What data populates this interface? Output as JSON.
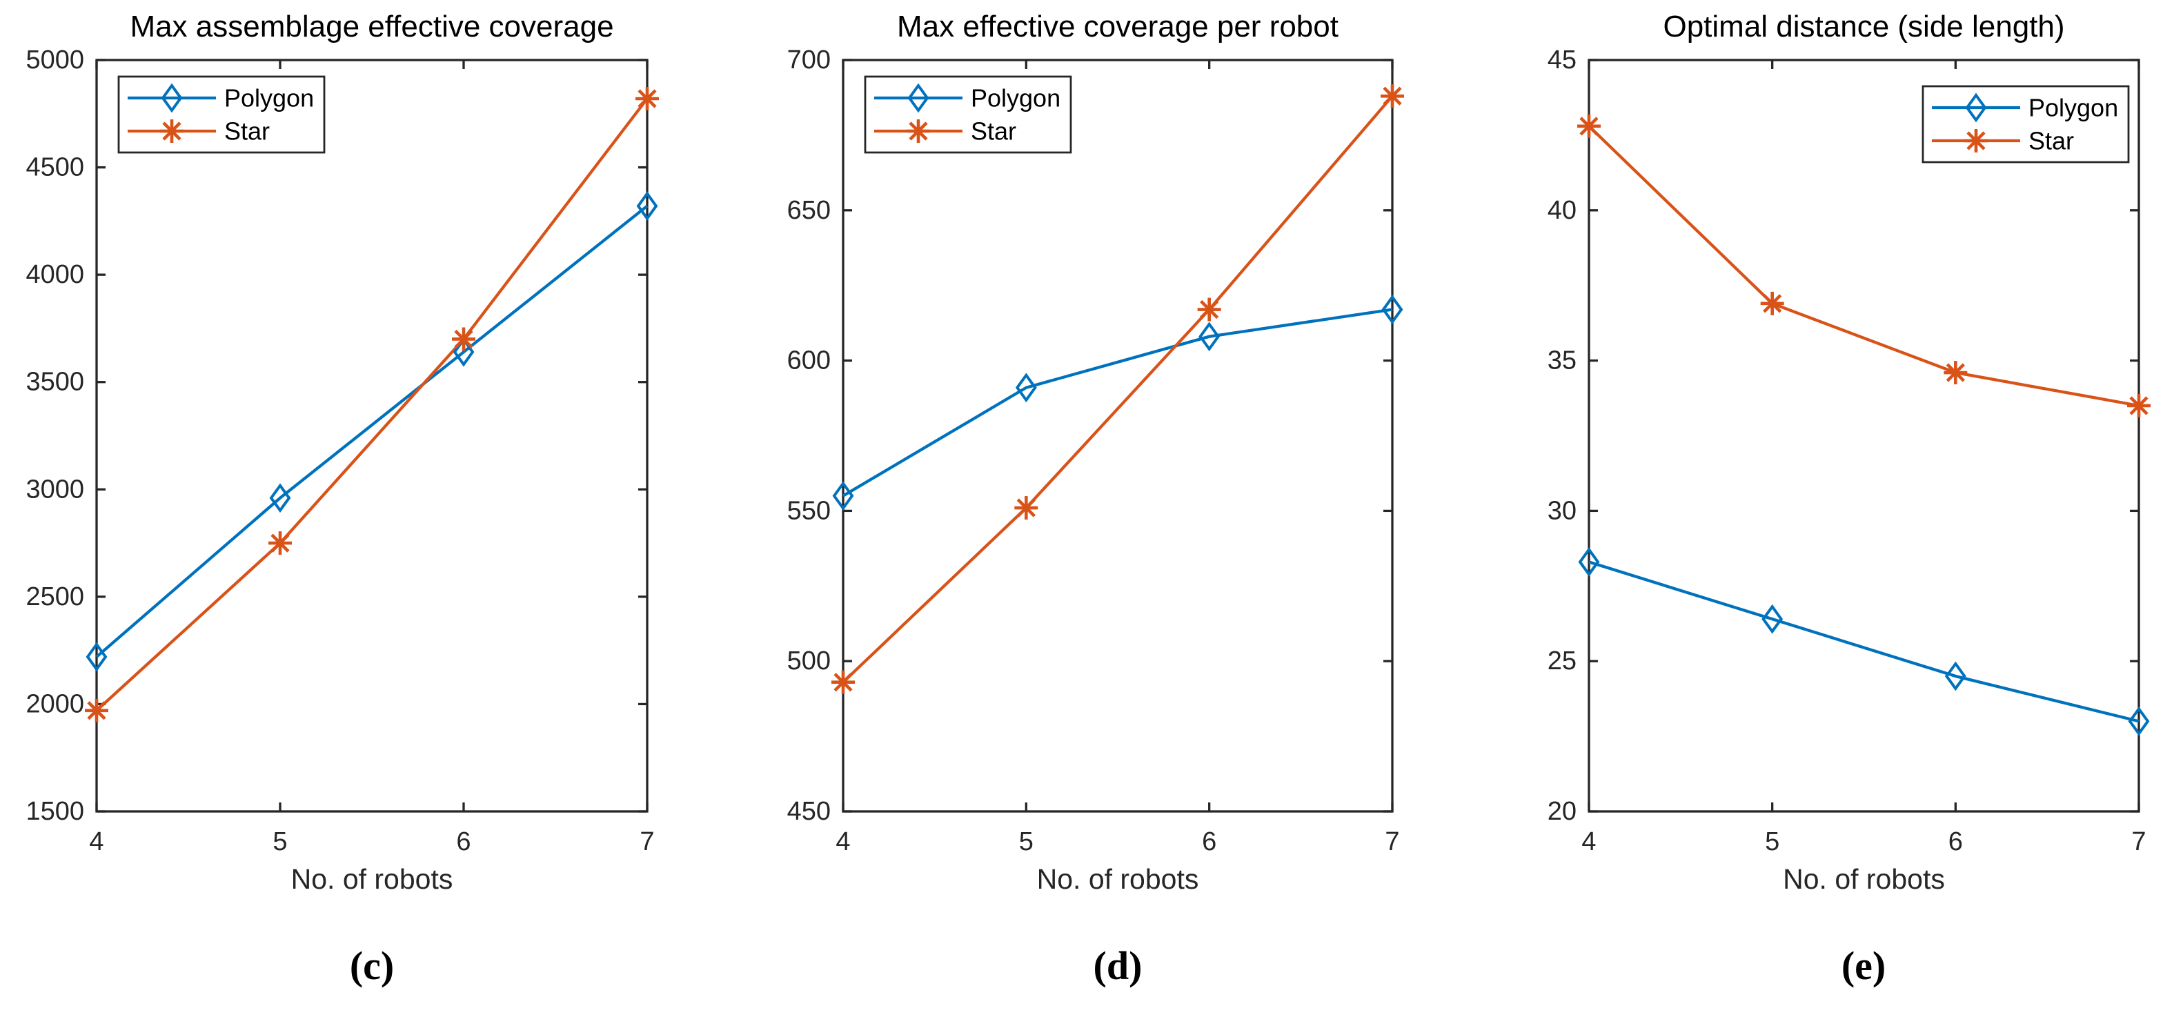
{
  "figure": {
    "background": "#FFFFFF",
    "axis_color": "#262626",
    "title_color": "#000000",
    "legend_text_color": "#000000"
  },
  "captions": [
    {
      "label": "(c)"
    },
    {
      "label": "(d)"
    },
    {
      "label": "(e)"
    }
  ],
  "chart_data": [
    {
      "id": "c",
      "type": "line",
      "title": "Max assemblage effective coverage",
      "xlabel": "No. of robots",
      "ylabel": "",
      "x": [
        4,
        5,
        6,
        7
      ],
      "xlim": [
        4,
        7
      ],
      "xticks": [
        4,
        5,
        6,
        7
      ],
      "ylim": [
        1500,
        5000
      ],
      "yticks": [
        1500,
        2000,
        2500,
        3000,
        3500,
        4000,
        4500,
        5000
      ],
      "grid": false,
      "legend_position": "top-left",
      "series": [
        {
          "name": "Polygon",
          "color": "#0072BD",
          "marker": "diamond",
          "values": [
            2220,
            2960,
            3640,
            4320
          ]
        },
        {
          "name": "Star",
          "color": "#D95319",
          "marker": "asterisk",
          "values": [
            1970,
            2750,
            3700,
            4820
          ]
        }
      ]
    },
    {
      "id": "d",
      "type": "line",
      "title": "Max effective coverage per robot",
      "xlabel": "No. of robots",
      "ylabel": "",
      "x": [
        4,
        5,
        6,
        7
      ],
      "xlim": [
        4,
        7
      ],
      "xticks": [
        4,
        5,
        6,
        7
      ],
      "ylim": [
        450,
        700
      ],
      "yticks": [
        450,
        500,
        550,
        600,
        650,
        700
      ],
      "grid": false,
      "legend_position": "top-left",
      "series": [
        {
          "name": "Polygon",
          "color": "#0072BD",
          "marker": "diamond",
          "values": [
            555,
            591,
            608,
            617
          ]
        },
        {
          "name": "Star",
          "color": "#D95319",
          "marker": "asterisk",
          "values": [
            493,
            551,
            617,
            688
          ]
        }
      ]
    },
    {
      "id": "e",
      "type": "line",
      "title": "Optimal distance (side length)",
      "xlabel": "No. of robots",
      "ylabel": "",
      "x": [
        4,
        5,
        6,
        7
      ],
      "xlim": [
        4,
        7
      ],
      "xticks": [
        4,
        5,
        6,
        7
      ],
      "ylim": [
        20,
        45
      ],
      "yticks": [
        20,
        25,
        30,
        35,
        40,
        45
      ],
      "grid": false,
      "legend_position": "top-right",
      "series": [
        {
          "name": "Polygon",
          "color": "#0072BD",
          "marker": "diamond",
          "values": [
            28.3,
            26.4,
            24.5,
            23.0
          ]
        },
        {
          "name": "Star",
          "color": "#D95319",
          "marker": "asterisk",
          "values": [
            42.8,
            36.9,
            34.6,
            33.5
          ]
        }
      ]
    }
  ]
}
